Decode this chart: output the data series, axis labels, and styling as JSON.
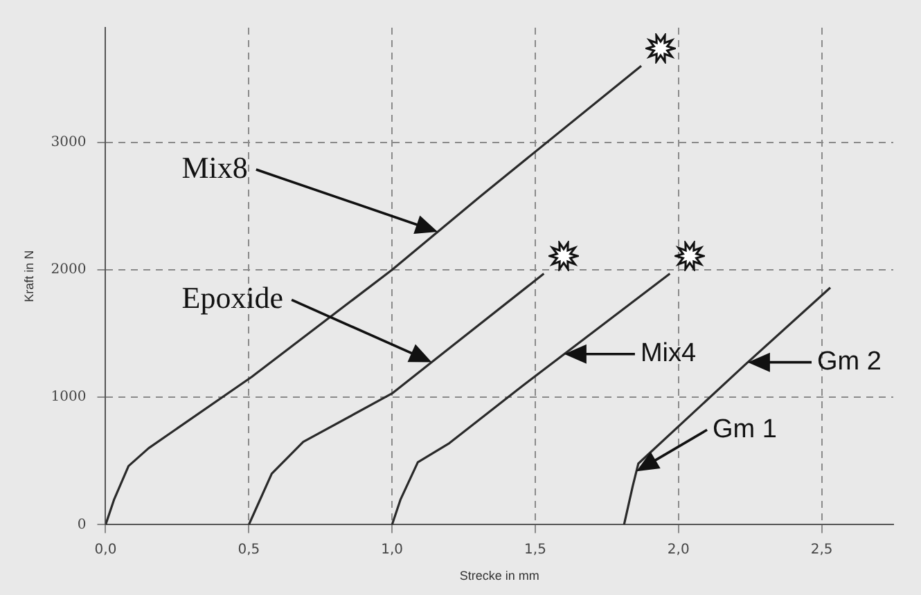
{
  "chart_data": {
    "type": "line",
    "xlabel": "Strecke in mm",
    "ylabel": "Kraft in N",
    "xlim": [
      0,
      2.75
    ],
    "ylim": [
      0,
      3900
    ],
    "xticks": [
      {
        "value": 0,
        "label": "0,0"
      },
      {
        "value": 0.5,
        "label": "0,5"
      },
      {
        "value": 1,
        "label": "1,0"
      },
      {
        "value": 1.5,
        "label": "1,5"
      },
      {
        "value": 2,
        "label": "2,0"
      },
      {
        "value": 2.5,
        "label": "2,5"
      }
    ],
    "yticks": [
      0,
      1000,
      2000,
      3000
    ],
    "grid": true,
    "legend": false,
    "marker": "none",
    "line_style": "solid",
    "series": [
      {
        "color": "#2a2a2a",
        "x": [
          0,
          0.03,
          0.08,
          0.15,
          0.51,
          1.0,
          1.31,
          1.87
        ],
        "values": [
          0,
          200,
          460,
          600,
          1160,
          2000,
          2580,
          3600
        ]
      },
      {
        "color": "#2a2a2a",
        "x": [
          0.5,
          0.52,
          0.58,
          0.69,
          1.0,
          1.53
        ],
        "values": [
          0,
          100,
          400,
          650,
          1030,
          1970
        ]
      },
      {
        "color": "#2a2a2a",
        "x": [
          1.0,
          1.03,
          1.09,
          1.2,
          1.45,
          1.97
        ],
        "values": [
          0,
          200,
          490,
          640,
          1080,
          1970
        ]
      },
      {
        "color": "#2a2a2a",
        "x": [
          1.81,
          1.84,
          1.86,
          2.23,
          2.53
        ],
        "values": [
          0,
          300,
          480,
          1250,
          1860
        ]
      }
    ],
    "annotations": [
      "Mix8",
      "Epoxide",
      "Mix4",
      "Gm 2",
      "Gm 1"
    ]
  }
}
